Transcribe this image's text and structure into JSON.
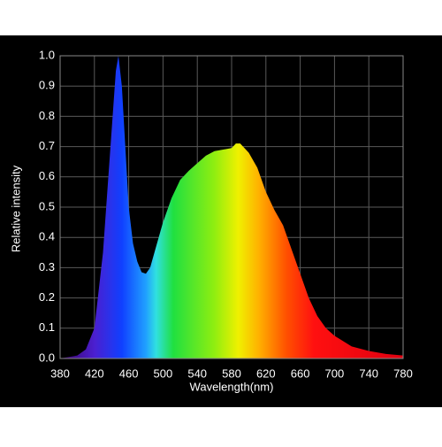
{
  "chart_data": {
    "type": "area",
    "xlabel": "Wavelength(nm)",
    "ylabel": "Relative intensity",
    "x": [
      380,
      400,
      410,
      420,
      430,
      440,
      445,
      448,
      452,
      455,
      460,
      465,
      470,
      475,
      480,
      485,
      490,
      500,
      510,
      520,
      530,
      540,
      550,
      560,
      570,
      580,
      585,
      590,
      600,
      610,
      620,
      630,
      640,
      650,
      660,
      670,
      680,
      690,
      700,
      720,
      740,
      760,
      780
    ],
    "values": [
      0,
      0.01,
      0.03,
      0.1,
      0.35,
      0.75,
      0.95,
      1.0,
      0.9,
      0.75,
      0.5,
      0.38,
      0.32,
      0.285,
      0.28,
      0.3,
      0.35,
      0.45,
      0.53,
      0.59,
      0.62,
      0.645,
      0.67,
      0.685,
      0.69,
      0.695,
      0.71,
      0.71,
      0.68,
      0.63,
      0.55,
      0.49,
      0.44,
      0.36,
      0.28,
      0.2,
      0.14,
      0.1,
      0.075,
      0.04,
      0.025,
      0.015,
      0.01
    ],
    "xlim": [
      380,
      780
    ],
    "xticks": [
      380,
      420,
      460,
      500,
      540,
      580,
      620,
      660,
      700,
      740,
      780
    ],
    "ylim": [
      0,
      1
    ],
    "yticks": [
      {
        "value": 0,
        "label": "0.0"
      },
      0.1,
      0.2,
      0.3,
      0.4,
      0.5,
      0.6,
      0.7,
      0.8,
      0.9,
      {
        "value": 1,
        "label": "1.0"
      }
    ],
    "grid": true
  }
}
